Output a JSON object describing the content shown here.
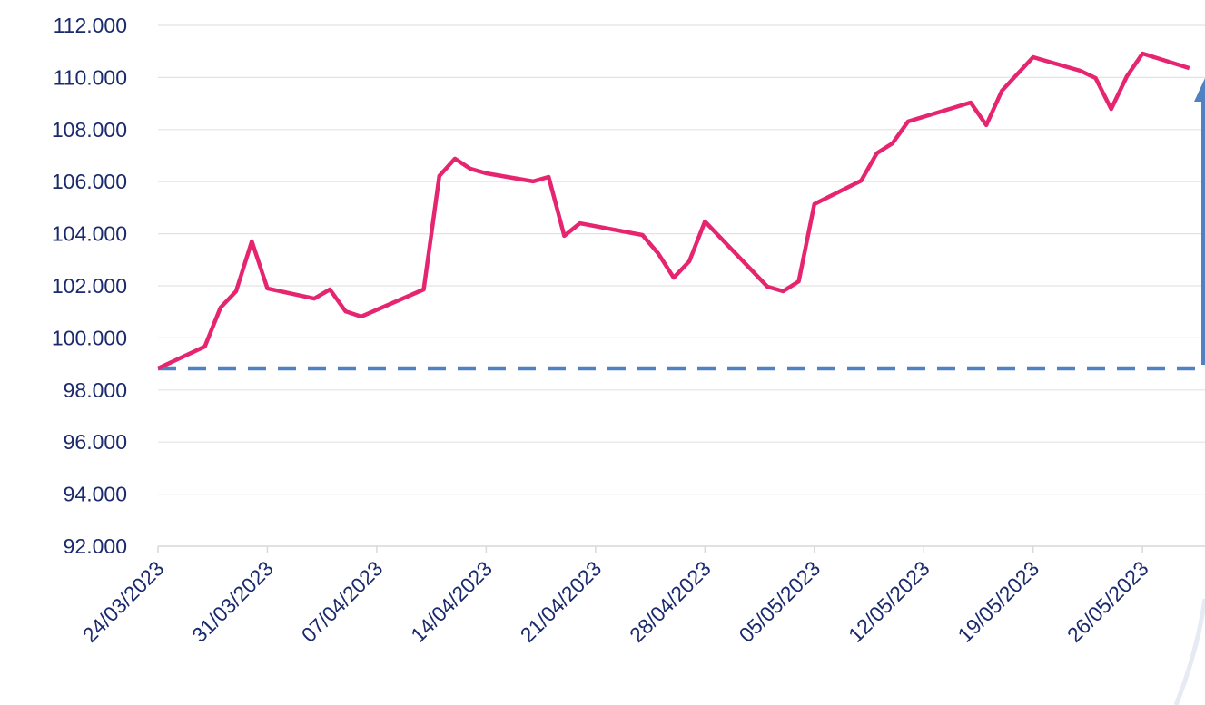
{
  "chart_data": {
    "type": "line",
    "x": [
      "24/03/2023",
      "27/03/2023",
      "28/03/2023",
      "29/03/2023",
      "30/03/2023",
      "31/03/2023",
      "03/04/2023",
      "04/04/2023",
      "05/04/2023",
      "06/04/2023",
      "10/04/2023",
      "11/04/2023",
      "12/04/2023",
      "13/04/2023",
      "14/04/2023",
      "17/04/2023",
      "18/04/2023",
      "19/04/2023",
      "20/04/2023",
      "24/04/2023",
      "25/04/2023",
      "26/04/2023",
      "27/04/2023",
      "28/04/2023",
      "02/05/2023",
      "03/05/2023",
      "04/05/2023",
      "05/05/2023",
      "08/05/2023",
      "09/05/2023",
      "10/05/2023",
      "11/05/2023",
      "15/05/2023",
      "16/05/2023",
      "17/05/2023",
      "19/05/2023",
      "22/05/2023",
      "23/05/2023",
      "24/05/2023",
      "25/05/2023",
      "26/05/2023",
      "29/05/2023"
    ],
    "series": [
      {
        "color": "#e5256f",
        "values": [
          98830,
          99670,
          101160,
          101790,
          103710,
          101900,
          101510,
          101860,
          101020,
          100820,
          101860,
          106220,
          106880,
          106490,
          106320,
          106010,
          106180,
          103920,
          104400,
          103950,
          103250,
          102310,
          102940,
          104470,
          101970,
          101790,
          102170,
          105140,
          106040,
          107090,
          107470,
          108310,
          109040,
          108170,
          109490,
          110780,
          110260,
          109980,
          108790,
          110050,
          110920,
          110360
        ]
      }
    ],
    "reference_line": {
      "value": 98830,
      "color": "#4f81c3",
      "style": "dashed"
    },
    "xlim": [
      "24/03/2023",
      "30/05/2023"
    ],
    "xticks": [
      "24/03/2023",
      "31/03/2023",
      "07/04/2023",
      "14/04/2023",
      "21/04/2023",
      "28/04/2023",
      "05/05/2023",
      "12/05/2023",
      "19/05/2023",
      "26/05/2023"
    ],
    "ylim": [
      92000,
      112000
    ],
    "yticks": [
      {
        "value": 92000,
        "label": "92.000"
      },
      {
        "value": 94000,
        "label": "94.000"
      },
      {
        "value": 96000,
        "label": "96.000"
      },
      {
        "value": 98000,
        "label": "98.000"
      },
      {
        "value": 100000,
        "label": "100.000"
      },
      {
        "value": 102000,
        "label": "102.000"
      },
      {
        "value": 104000,
        "label": "104.000"
      },
      {
        "value": 106000,
        "label": "106.000"
      },
      {
        "value": 108000,
        "label": "108.000"
      },
      {
        "value": 110000,
        "label": "110.000"
      },
      {
        "value": 112000,
        "label": "112.000"
      }
    ],
    "grid": true
  }
}
